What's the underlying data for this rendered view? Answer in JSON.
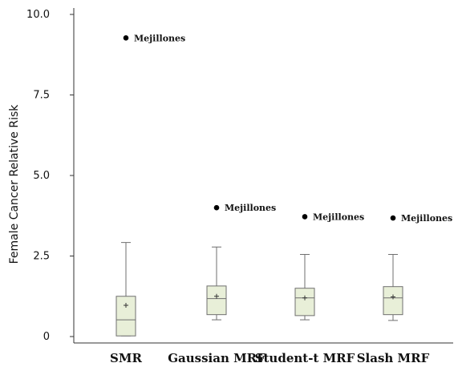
{
  "chart_data": {
    "type": "box",
    "ylabel": "Female Cancer Relative Risk",
    "xlabel": "",
    "ylim": [
      0,
      10
    ],
    "yticks": [
      {
        "value": 0,
        "label": "0"
      },
      {
        "value": 2.5,
        "label": "2.5"
      },
      {
        "value": 5,
        "label": "5.0"
      },
      {
        "value": 7.5,
        "label": "7.5"
      },
      {
        "value": 10,
        "label": "10.0"
      }
    ],
    "grid": false,
    "categories": [
      "SMR",
      "Gaussian MRF",
      "Student-t MRF",
      "Slash MRF"
    ],
    "series": [
      {
        "category": "SMR",
        "whisker_low": 0.02,
        "q1": 0.02,
        "median": 0.52,
        "q3": 1.25,
        "whisker_high": 2.92,
        "mean": 0.97,
        "outliers": [
          {
            "value": 9.27,
            "label": "Mejillones"
          }
        ]
      },
      {
        "category": "Gaussian MRF",
        "whisker_low": 0.52,
        "q1": 0.68,
        "median": 1.18,
        "q3": 1.57,
        "whisker_high": 2.78,
        "mean": 1.25,
        "outliers": [
          {
            "value": 4.0,
            "label": "Mejillones"
          }
        ]
      },
      {
        "category": "Student-t MRF",
        "whisker_low": 0.52,
        "q1": 0.65,
        "median": 1.2,
        "q3": 1.5,
        "whisker_high": 2.55,
        "mean": 1.2,
        "outliers": [
          {
            "value": 3.72,
            "label": "Mejillones"
          }
        ]
      },
      {
        "category": "Slash MRF",
        "whisker_low": 0.5,
        "q1": 0.68,
        "median": 1.2,
        "q3": 1.55,
        "whisker_high": 2.55,
        "mean": 1.23,
        "outliers": [
          {
            "value": 3.68,
            "label": "Mejillones"
          }
        ]
      }
    ],
    "colors": {
      "box_fill": "#e8efd8",
      "box_stroke": "#6f6f6f",
      "axis": "#333333",
      "outlier": "#000000"
    }
  }
}
